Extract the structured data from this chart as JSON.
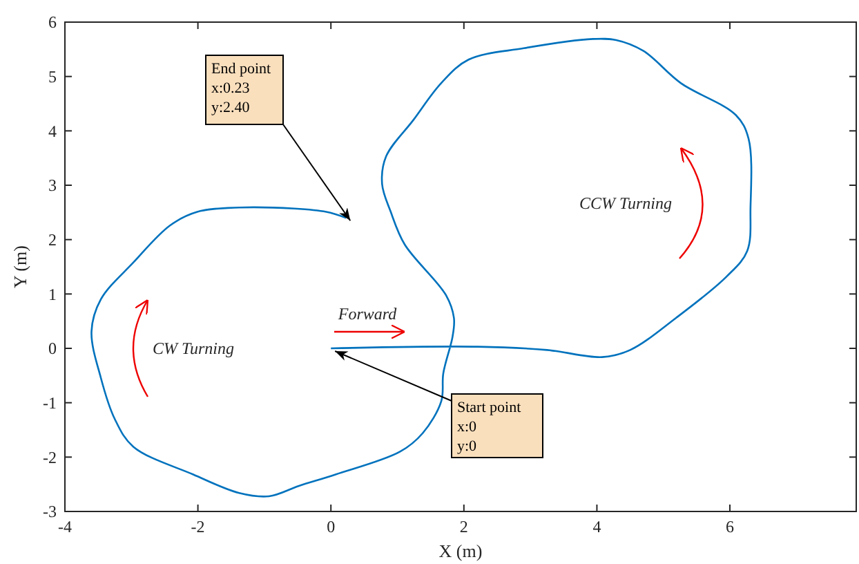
{
  "chart_data": {
    "type": "line",
    "xlabel": "X (m)",
    "ylabel": "Y (m)",
    "xlim": [
      -4,
      7.9
    ],
    "ylim": [
      -3,
      6
    ],
    "xticks": [
      -4,
      -2,
      0,
      2,
      4,
      6
    ],
    "yticks": [
      -3,
      -2,
      -1,
      0,
      1,
      2,
      3,
      4,
      5,
      6
    ],
    "grid": false,
    "marker": "none",
    "line_style": "solid",
    "series": [
      {
        "color": "#0072bd",
        "x": [
          0,
          2.21,
          3.25,
          4.08,
          4.5,
          5.19,
          5.95,
          6.26,
          6.31,
          6.28,
          6.09,
          5.26,
          4.7,
          4.29,
          3.94,
          2.9,
          2.07,
          1.66,
          1.24,
          0.83,
          0.77,
          0.9,
          1.11,
          1.73,
          1.85,
          1.83,
          1.69,
          1.66,
          1.38,
          1.04,
          0.07,
          -0.48,
          -0.93,
          -1.38,
          -2.07,
          -2.97,
          -3.25,
          -3.46,
          -3.6,
          -3.46,
          -2.97,
          -2.42,
          -2.01,
          -1.38,
          -0.55,
          -0.07,
          0.23
        ],
        "values": [
          0,
          0.03,
          -0.03,
          -0.16,
          -0.03,
          0.56,
          1.32,
          1.79,
          2.59,
          3.86,
          4.29,
          4.88,
          5.47,
          5.67,
          5.69,
          5.52,
          5.31,
          4.88,
          4.2,
          3.53,
          3.02,
          2.51,
          1.91,
          0.98,
          0.56,
          0.22,
          -0.46,
          -0.97,
          -1.56,
          -1.9,
          -2.32,
          -2.53,
          -2.72,
          -2.66,
          -2.32,
          -1.81,
          -1.3,
          -0.54,
          0.31,
          0.9,
          1.58,
          2.26,
          2.51,
          2.59,
          2.57,
          2.51,
          2.4
        ]
      }
    ],
    "annotations": [
      {
        "text": "End point\nx:0.23\ny:2.40",
        "x": 0.23,
        "y": 2.4
      },
      {
        "text": "Start point\nx:0\ny:0",
        "x": 0,
        "y": 0
      },
      "CW Turning",
      "CCW Turning",
      "Forward"
    ]
  }
}
